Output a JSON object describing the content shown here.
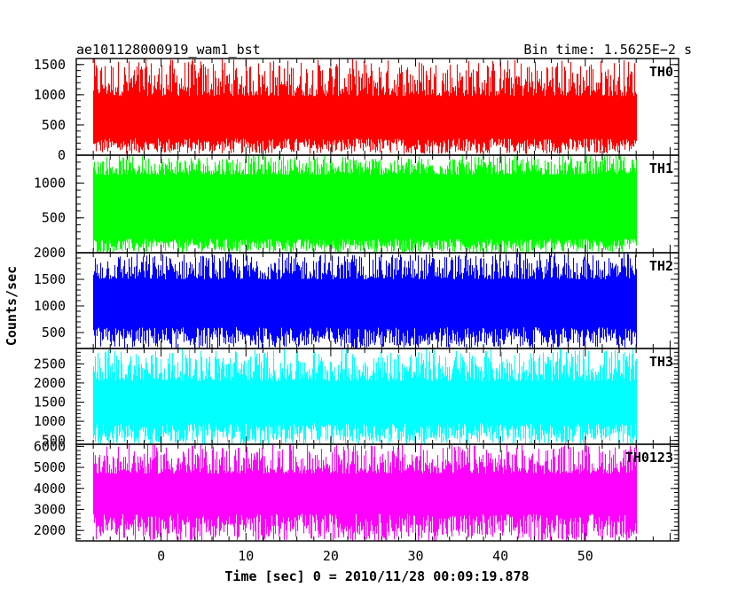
{
  "header": {
    "left_title": "ae101128000919_wam1_bst",
    "right_title": "Bin time: 1.5625E−2 s"
  },
  "chart_data": {
    "type": "line",
    "title": "ae101128000919_wam1_bst",
    "subtitle": "Bin time: 1.5625E−2 s",
    "xlabel": "Time [sec] 0 = 2010/11/28 00:09:19.878",
    "ylabel": "Counts/sec",
    "xlim": [
      -10,
      61
    ],
    "data_range": [
      -8,
      56
    ],
    "bin_time_s": 0.015625,
    "x_ticks": [
      0,
      10,
      20,
      30,
      40,
      50
    ],
    "grid": false,
    "panels": [
      {
        "name": "TH0",
        "color": "#ff0000",
        "ylim": [
          0,
          1600
        ],
        "y_ticks": [
          0,
          500,
          1000,
          1500
        ],
        "mean": 640,
        "low_min": 20,
        "low_max": 280,
        "high_min": 980,
        "high_max": 1600
      },
      {
        "name": "TH1",
        "color": "#00ff00",
        "ylim": [
          0,
          1400
        ],
        "y_ticks": [
          500,
          1000
        ],
        "mean": 720,
        "low_min": 0,
        "low_max": 200,
        "high_min": 1120,
        "high_max": 1400
      },
      {
        "name": "TH2",
        "color": "#0000ff",
        "ylim": [
          200,
          2000
        ],
        "y_ticks": [
          500,
          1000,
          1500,
          2000
        ],
        "mean": 1000,
        "low_min": 200,
        "low_max": 600,
        "high_min": 1500,
        "high_max": 2000
      },
      {
        "name": "TH3",
        "color": "#00ffff",
        "ylim": [
          400,
          2900
        ],
        "y_ticks": [
          500,
          1000,
          1500,
          2000,
          2500
        ],
        "mean": 1500,
        "low_min": 400,
        "low_max": 950,
        "high_min": 2050,
        "high_max": 2900
      },
      {
        "name": "TH0123",
        "color": "#ff00ff",
        "ylim": [
          1500,
          6100
        ],
        "y_ticks": [
          2000,
          3000,
          4000,
          5000,
          6000
        ],
        "mean": 3600,
        "low_min": 1500,
        "low_max": 2800,
        "high_min": 4700,
        "high_max": 6100
      }
    ]
  }
}
